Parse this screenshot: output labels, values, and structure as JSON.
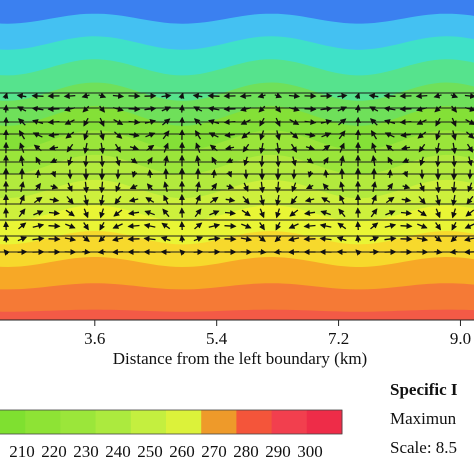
{
  "chart_data": {
    "type": "heatmap",
    "title": "",
    "xlabel": "Distance from the left boundary (km)",
    "ylabel": "",
    "x_ticks": [
      "3.6",
      "5.4",
      "7.2",
      "9.0"
    ],
    "x_range_km": [
      2.2,
      9.2
    ],
    "cell_period_km": 2.6,
    "colorbar": {
      "tick_labels": [
        "210",
        "220",
        "230",
        "240",
        "250",
        "260",
        "270",
        "280",
        "290",
        "300"
      ],
      "min": 200,
      "max": 310,
      "colors": [
        "#7fe030",
        "#8ee335",
        "#9be63a",
        "#acea3e",
        "#c4ef3f",
        "#dcf23a",
        "#ee9a2a",
        "#f4553a",
        "#f23f4e",
        "#ee2c48"
      ]
    },
    "field_bands": [
      {
        "value": 150,
        "color": "#1f49d8"
      },
      {
        "value": 165,
        "color": "#3b80f0"
      },
      {
        "value": 175,
        "color": "#44c1f2"
      },
      {
        "value": 185,
        "color": "#3fe1c8"
      },
      {
        "value": 195,
        "color": "#56e38d"
      },
      {
        "value": 205,
        "color": "#6fe05a"
      },
      {
        "value": 215,
        "color": "#84e037"
      },
      {
        "value": 225,
        "color": "#9ae53a"
      },
      {
        "value": 235,
        "color": "#b2ea3d"
      },
      {
        "value": 245,
        "color": "#cdf03c"
      },
      {
        "value": 255,
        "color": "#e9f535"
      },
      {
        "value": 265,
        "color": "#f7d92c"
      },
      {
        "value": 275,
        "color": "#f7a826"
      },
      {
        "value": 285,
        "color": "#f57a36"
      },
      {
        "value": 295,
        "color": "#f35a46"
      }
    ],
    "legend_info": {
      "title_partial": "Specific I",
      "maximum_partial": "Maximun",
      "scale_partial": "Scale: 8.5"
    },
    "vectors": "convective cells, period 2.6 km"
  }
}
